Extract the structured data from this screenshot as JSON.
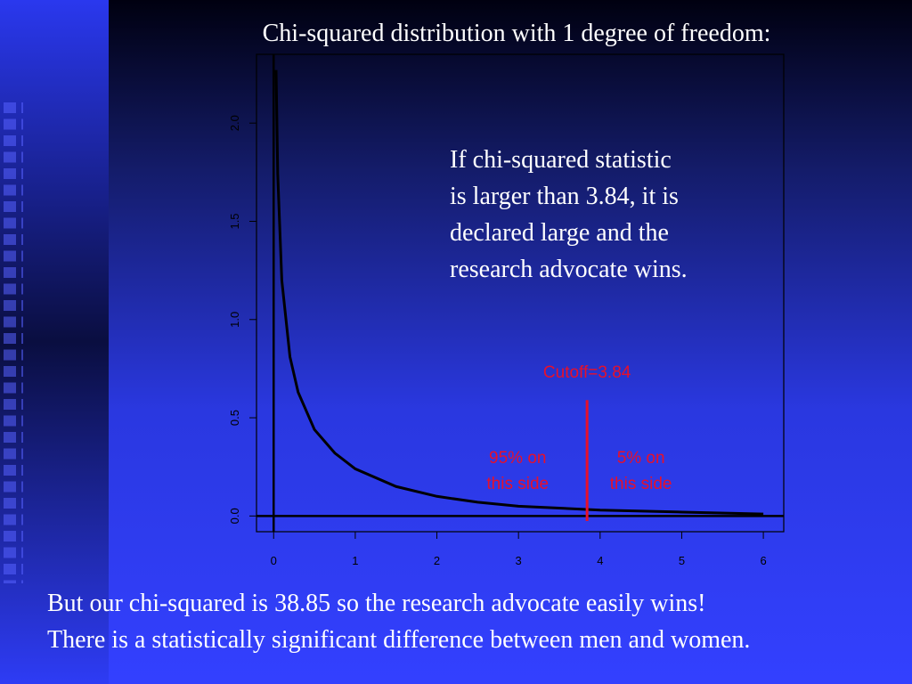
{
  "chart_data": {
    "type": "line",
    "title": "Chi-squared distribution with 1 degree of freedom:",
    "x": [
      0.03,
      0.05,
      0.1,
      0.2,
      0.3,
      0.5,
      0.75,
      1,
      1.5,
      2,
      2.5,
      3,
      3.5,
      4,
      5,
      6
    ],
    "values": [
      2.27,
      1.74,
      1.2,
      0.81,
      0.63,
      0.44,
      0.32,
      0.24,
      0.15,
      0.1,
      0.07,
      0.05,
      0.04,
      0.03,
      0.02,
      0.01
    ],
    "color": "#000000",
    "xlim": [
      -0.21,
      6.25
    ],
    "ylim": [
      -0.08,
      2.35
    ],
    "xticks": [
      0,
      1,
      2,
      3,
      4,
      5,
      6
    ],
    "yticks": [
      {
        "value": 0,
        "label": "0.0"
      },
      {
        "value": 0.5,
        "label": "0.5"
      },
      {
        "value": 1,
        "label": "1.0"
      },
      {
        "value": 1.5,
        "label": "1.5"
      },
      {
        "value": 2,
        "label": "2.0"
      }
    ],
    "hline": 0,
    "vline": 0,
    "cutoff": {
      "value": 3.84,
      "top": 0.59,
      "color": "#e8102a",
      "label": "Cutoff=3.84"
    },
    "annotations": [
      {
        "lines": [
          "95% on",
          "this side"
        ],
        "x": 2.99,
        "color": "#e8102a"
      },
      {
        "lines": [
          "5% on",
          "this side"
        ],
        "x": 4.5,
        "color": "#e8102a"
      }
    ]
  },
  "slide": {
    "callout": [
      "If chi-squared statistic",
      "is larger than 3.84, it is",
      "declared large and the",
      "research advocate wins."
    ],
    "footer": [
      "But our chi-squared is 38.85 so  the research advocate easily wins!",
      "There is a statistically significant difference between men and women."
    ]
  }
}
